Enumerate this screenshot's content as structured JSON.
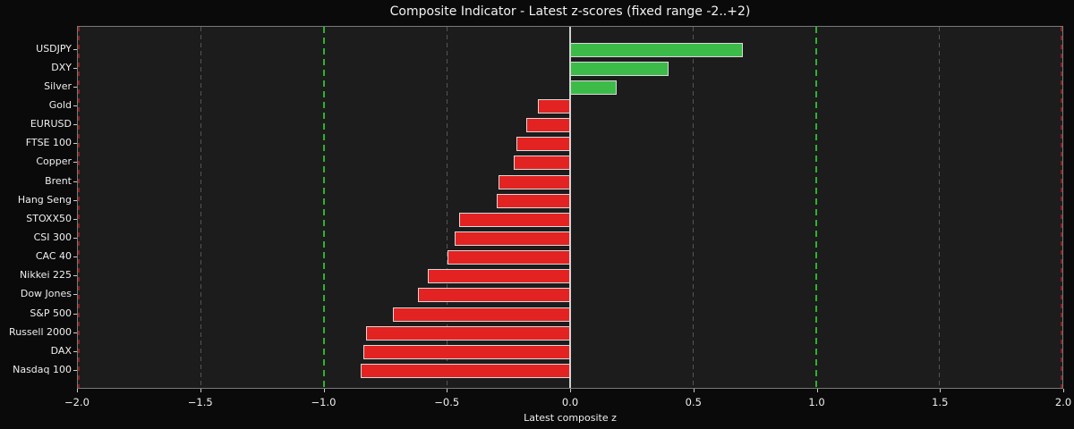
{
  "chart_data": {
    "type": "bar",
    "orientation": "horizontal",
    "title": "Composite Indicator - Latest z-scores (fixed range -2..+2)",
    "xlabel": "Latest composite z",
    "categories": [
      "USDJPY",
      "DXY",
      "Silver",
      "Gold",
      "EURUSD",
      "FTSE 100",
      "Copper",
      "Brent",
      "Hang Seng",
      "STOXX50",
      "CSI 300",
      "CAC 40",
      "Nikkei 225",
      "Dow Jones",
      "S&P 500",
      "Russell 2000",
      "DAX",
      "Nasdaq 100"
    ],
    "values": [
      0.7,
      0.4,
      0.19,
      -0.13,
      -0.18,
      -0.22,
      -0.23,
      -0.29,
      -0.3,
      -0.45,
      -0.47,
      -0.5,
      -0.58,
      -0.62,
      -0.72,
      -0.83,
      -0.84,
      -0.85
    ],
    "xlim": [
      -2.0,
      2.0
    ],
    "x_ticks": [
      -2.0,
      -1.5,
      -1.0,
      -0.5,
      0.0,
      0.5,
      1.0,
      1.5,
      2.0
    ],
    "x_tick_labels": [
      "−2.0",
      "−1.5",
      "−1.0",
      "−0.5",
      "0.0",
      "0.5",
      "1.0",
      "1.5",
      "2.0"
    ],
    "gridlines_dashed_gray_at": [
      -1.5,
      -0.5,
      0.5,
      1.5
    ],
    "threshold_lines_dashed_green_at": [
      -1.0,
      1.0
    ],
    "threshold_lines_dashed_red_at": [
      -2.0,
      2.0
    ],
    "zero_line_at": 0.0,
    "legend": "none",
    "colors": {
      "positive_bar": "#3cbb49",
      "negative_bar": "#e32222",
      "bar_edge": "#d9d9d9",
      "threshold_green": "#2db32d",
      "threshold_red": "#8b2020",
      "grid_gray": "#555555",
      "zero_line": "#cfcfcf",
      "axes_background": "#1c1c1c",
      "figure_background": "#0a0a0a",
      "text": "#efefef"
    }
  }
}
